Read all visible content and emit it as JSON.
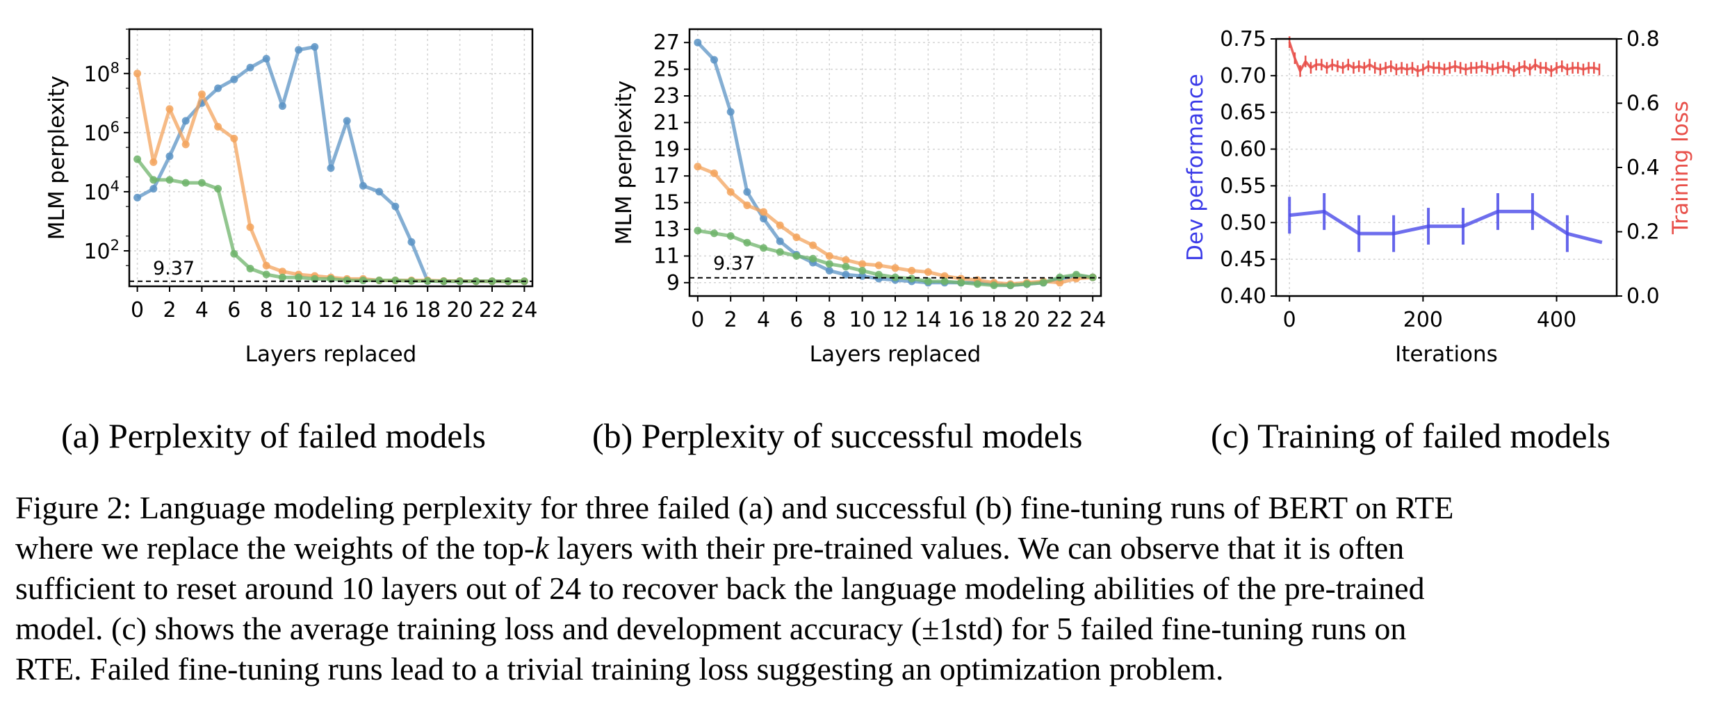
{
  "chart_data": [
    {
      "type": "line",
      "panel": "a",
      "xlabel": "Layers replaced",
      "ylabel": "MLM perplexity",
      "yscale": "log",
      "ylim_log10": [
        0.8,
        9.5
      ],
      "xlim": [
        -0.5,
        24.5
      ],
      "xticks": [
        0,
        2,
        4,
        6,
        8,
        10,
        12,
        14,
        16,
        18,
        20,
        22,
        24
      ],
      "yticks_log10": [
        2,
        4,
        6,
        8
      ],
      "ytick_labels": [
        "10^2",
        "10^4",
        "10^6",
        "10^8"
      ],
      "grid": true,
      "baseline": {
        "value": 9.37,
        "label": "9.37"
      },
      "x": [
        0,
        1,
        2,
        3,
        4,
        5,
        6,
        7,
        8,
        9,
        10,
        11,
        12,
        13,
        14,
        15,
        16,
        17,
        18,
        19,
        20,
        21,
        22,
        23,
        24
      ],
      "series": [
        {
          "color": "#5b93c4",
          "values_log10": [
            3.8,
            4.1,
            5.2,
            6.4,
            7.0,
            7.5,
            7.8,
            8.2,
            8.5,
            6.9,
            8.8,
            8.9,
            4.8,
            6.4,
            4.2,
            4.0,
            3.5,
            2.3,
            0.98,
            0.97,
            0.97,
            0.97,
            0.97,
            0.97,
            0.97
          ]
        },
        {
          "color": "#f3a35c",
          "values_log10": [
            8.0,
            5.0,
            6.8,
            5.6,
            7.3,
            6.2,
            5.8,
            2.8,
            1.5,
            1.3,
            1.2,
            1.15,
            1.1,
            1.05,
            1.05,
            1.0,
            1.0,
            1.0,
            1.0,
            0.98,
            0.98,
            0.97,
            0.97,
            0.97,
            0.97
          ]
        },
        {
          "color": "#6db36a",
          "values_log10": [
            5.1,
            4.4,
            4.4,
            4.3,
            4.3,
            4.1,
            1.9,
            1.4,
            1.2,
            1.1,
            1.1,
            1.05,
            1.05,
            1.0,
            1.0,
            1.0,
            1.0,
            0.98,
            0.98,
            0.97,
            0.97,
            0.97,
            0.97,
            0.97,
            0.97
          ]
        }
      ]
    },
    {
      "type": "line",
      "panel": "b",
      "xlabel": "Layers replaced",
      "ylabel": "MLM perplexity",
      "ylim": [
        8,
        28
      ],
      "xlim": [
        -0.5,
        24.5
      ],
      "xticks": [
        0,
        2,
        4,
        6,
        8,
        10,
        12,
        14,
        16,
        18,
        20,
        22,
        24
      ],
      "yticks": [
        9,
        11,
        13,
        15,
        17,
        19,
        21,
        23,
        25,
        27
      ],
      "grid": true,
      "baseline": {
        "value": 9.37,
        "label": "9.37"
      },
      "x": [
        0,
        1,
        2,
        3,
        4,
        5,
        6,
        7,
        8,
        9,
        10,
        11,
        12,
        13,
        14,
        15,
        16,
        17,
        18,
        19,
        20,
        21,
        22,
        23,
        24
      ],
      "series": [
        {
          "color": "#5b93c4",
          "values": [
            27.0,
            25.7,
            21.8,
            15.8,
            13.8,
            12.1,
            11.1,
            10.5,
            9.9,
            9.6,
            9.5,
            9.3,
            9.2,
            9.1,
            9.0,
            9.0,
            9.0,
            9.0,
            8.9,
            8.8,
            8.9,
            9.0,
            9.3,
            9.5,
            9.4
          ]
        },
        {
          "color": "#f3a35c",
          "values": [
            17.7,
            17.2,
            15.8,
            14.8,
            14.3,
            13.3,
            12.4,
            11.8,
            11.0,
            10.7,
            10.4,
            10.3,
            10.1,
            9.9,
            9.8,
            9.5,
            9.3,
            9.2,
            9.0,
            8.9,
            9.0,
            9.1,
            9.0,
            9.3,
            9.4
          ]
        },
        {
          "color": "#6db36a",
          "values": [
            12.9,
            12.7,
            12.5,
            12.0,
            11.6,
            11.3,
            11.0,
            10.8,
            10.4,
            10.2,
            9.9,
            9.6,
            9.4,
            9.3,
            9.1,
            9.1,
            9.0,
            8.9,
            8.8,
            8.8,
            8.9,
            9.0,
            9.4,
            9.6,
            9.4
          ]
        }
      ]
    },
    {
      "type": "line",
      "panel": "c",
      "xlabel": "Iterations",
      "ylabel_left": "Dev performance",
      "ylabel_right": "Training loss",
      "xlim": [
        -20,
        490
      ],
      "ylim_left": [
        0.4,
        0.75
      ],
      "ylim_right": [
        0.0,
        0.8
      ],
      "xticks": [
        0,
        200,
        400
      ],
      "yticks_left": [
        0.4,
        0.45,
        0.5,
        0.55,
        0.6,
        0.65,
        0.7,
        0.75
      ],
      "ytick_labels_left": [
        "0.40",
        "0.45",
        "0.50",
        "0.55",
        "0.60",
        "0.65",
        "0.70",
        "0.75"
      ],
      "yticks_right": [
        0.0,
        0.2,
        0.4,
        0.6,
        0.8
      ],
      "ytick_labels_right": [
        "0.0",
        "0.2",
        "0.4",
        "0.6",
        "0.8"
      ],
      "grid": true,
      "dev": {
        "color": "#4a4ae8",
        "x": [
          0,
          52,
          104,
          156,
          208,
          260,
          312,
          364,
          416,
          468
        ],
        "values": [
          0.51,
          0.515,
          0.485,
          0.485,
          0.495,
          0.495,
          0.515,
          0.515,
          0.485,
          0.473
        ],
        "std": [
          0.025,
          0.025,
          0.025,
          0.025,
          0.025,
          0.025,
          0.025,
          0.025,
          0.025,
          0
        ]
      },
      "loss": {
        "color": "#e8504a",
        "x_start": 0,
        "x_step": 8,
        "values": [
          0.79,
          0.74,
          0.7,
          0.73,
          0.71,
          0.72,
          0.72,
          0.71,
          0.72,
          0.715,
          0.71,
          0.72,
          0.71,
          0.715,
          0.71,
          0.72,
          0.71,
          0.705,
          0.71,
          0.715,
          0.705,
          0.71,
          0.705,
          0.71,
          0.7,
          0.705,
          0.715,
          0.71,
          0.71,
          0.705,
          0.71,
          0.715,
          0.71,
          0.705,
          0.71,
          0.71,
          0.715,
          0.71,
          0.705,
          0.71,
          0.715,
          0.71,
          0.7,
          0.71,
          0.715,
          0.705,
          0.72,
          0.71,
          0.71,
          0.7,
          0.71,
          0.715,
          0.705,
          0.71,
          0.71,
          0.705,
          0.71,
          0.71,
          0.705
        ],
        "err": 0.018
      }
    }
  ],
  "subcaptions": {
    "a": "(a) Perplexity of failed models",
    "b": "(b) Perplexity of successful models",
    "c": "(c) Training of failed models"
  },
  "caption": {
    "line1": "Figure 2: Language modeling perplexity for three failed (a) and successful (b) fine-tuning runs of BERT on RTE",
    "line2a": "where we replace the weights of the top-",
    "line2k": "k",
    "line2b": " layers with their pre-trained values. We can observe that it is often",
    "line3": "sufficient to reset around 10 layers out of 24 to recover back the language modeling abilities of the pre-trained",
    "line4": "model. (c) shows the average training loss and development accuracy (±1std) for 5 failed fine-tuning runs on",
    "line5": "RTE. Failed fine-tuning runs lead to a trivial training loss suggesting an optimization problem."
  }
}
